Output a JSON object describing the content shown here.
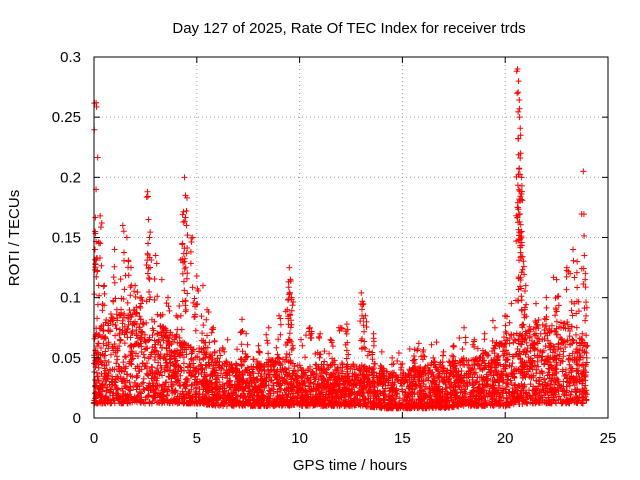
{
  "chart_data": {
    "type": "scatter",
    "title": "Day 127 of 2025, Rate Of TEC Index for receiver trds",
    "xlabel": "GPS time / hours",
    "ylabel": "ROTI / TECUs",
    "xlim": [
      0,
      25
    ],
    "ylim": [
      0,
      0.3
    ],
    "x_ticks": [
      0,
      5,
      10,
      15,
      20,
      25
    ],
    "x_tick_labels": [
      "0",
      "5",
      "10",
      "15",
      "20",
      "25"
    ],
    "y_ticks": [
      0,
      0.05,
      0.1,
      0.15,
      0.2,
      0.25,
      0.3
    ],
    "y_tick_labels": [
      "0",
      "0.05",
      "0.1",
      "0.15",
      "0.2",
      "0.25",
      "0.3"
    ],
    "grid": true,
    "marker": "+",
    "color": "#ff0000",
    "series": [
      {
        "name": "ROTI",
        "baseline_profile": {
          "description": "dense point cloud: typical ROTI level per hour (lower, upper envelope)",
          "hours": [
            0,
            1,
            2,
            3,
            4,
            5,
            6,
            7,
            8,
            9,
            10,
            11,
            12,
            13,
            14,
            15,
            16,
            17,
            18,
            19,
            20,
            21,
            22,
            23,
            24
          ],
          "low": [
            0.012,
            0.012,
            0.012,
            0.012,
            0.012,
            0.012,
            0.01,
            0.01,
            0.01,
            0.01,
            0.01,
            0.01,
            0.01,
            0.01,
            0.008,
            0.008,
            0.008,
            0.008,
            0.01,
            0.01,
            0.01,
            0.012,
            0.012,
            0.012,
            0.012
          ],
          "high": [
            0.07,
            0.09,
            0.09,
            0.08,
            0.07,
            0.06,
            0.05,
            0.045,
            0.045,
            0.05,
            0.045,
            0.045,
            0.045,
            0.045,
            0.04,
            0.04,
            0.045,
            0.045,
            0.05,
            0.055,
            0.065,
            0.075,
            0.08,
            0.08,
            0.07
          ]
        },
        "peaks": [
          {
            "x": 0.1,
            "y": 0.262
          },
          {
            "x": 0.1,
            "y": 0.19
          },
          {
            "x": 0.3,
            "y": 0.168
          },
          {
            "x": 0.05,
            "y": 0.14
          },
          {
            "x": 0.15,
            "y": 0.133
          },
          {
            "x": 0.5,
            "y": 0.11
          },
          {
            "x": 1.0,
            "y": 0.14
          },
          {
            "x": 1.4,
            "y": 0.16
          },
          {
            "x": 1.6,
            "y": 0.15
          },
          {
            "x": 1.8,
            "y": 0.125
          },
          {
            "x": 2.0,
            "y": 0.11
          },
          {
            "x": 2.3,
            "y": 0.1
          },
          {
            "x": 2.6,
            "y": 0.188
          },
          {
            "x": 2.65,
            "y": 0.165
          },
          {
            "x": 2.7,
            "y": 0.15
          },
          {
            "x": 3.0,
            "y": 0.135
          },
          {
            "x": 3.3,
            "y": 0.115
          },
          {
            "x": 3.6,
            "y": 0.1
          },
          {
            "x": 4.0,
            "y": 0.085
          },
          {
            "x": 4.4,
            "y": 0.2
          },
          {
            "x": 4.45,
            "y": 0.185
          },
          {
            "x": 4.5,
            "y": 0.172
          },
          {
            "x": 4.5,
            "y": 0.16
          },
          {
            "x": 4.3,
            "y": 0.145
          },
          {
            "x": 4.4,
            "y": 0.13
          },
          {
            "x": 4.8,
            "y": 0.15
          },
          {
            "x": 5.0,
            "y": 0.118
          },
          {
            "x": 5.3,
            "y": 0.11
          },
          {
            "x": 5.5,
            "y": 0.09
          },
          {
            "x": 5.8,
            "y": 0.075
          },
          {
            "x": 6.5,
            "y": 0.065
          },
          {
            "x": 7.2,
            "y": 0.082
          },
          {
            "x": 7.4,
            "y": 0.07
          },
          {
            "x": 8.0,
            "y": 0.06
          },
          {
            "x": 8.5,
            "y": 0.075
          },
          {
            "x": 9.0,
            "y": 0.085
          },
          {
            "x": 9.5,
            "y": 0.125
          },
          {
            "x": 9.55,
            "y": 0.115
          },
          {
            "x": 9.6,
            "y": 0.1
          },
          {
            "x": 9.4,
            "y": 0.09
          },
          {
            "x": 10.5,
            "y": 0.075
          },
          {
            "x": 11.0,
            "y": 0.07
          },
          {
            "x": 11.5,
            "y": 0.065
          },
          {
            "x": 12.0,
            "y": 0.075
          },
          {
            "x": 12.3,
            "y": 0.078
          },
          {
            "x": 13.0,
            "y": 0.104
          },
          {
            "x": 13.05,
            "y": 0.097
          },
          {
            "x": 13.2,
            "y": 0.085
          },
          {
            "x": 13.6,
            "y": 0.07
          },
          {
            "x": 14.0,
            "y": 0.055
          },
          {
            "x": 14.5,
            "y": 0.05
          },
          {
            "x": 15.0,
            "y": 0.045
          },
          {
            "x": 15.6,
            "y": 0.057
          },
          {
            "x": 15.8,
            "y": 0.062
          },
          {
            "x": 16.0,
            "y": 0.055
          },
          {
            "x": 16.5,
            "y": 0.05
          },
          {
            "x": 17.0,
            "y": 0.055
          },
          {
            "x": 17.5,
            "y": 0.06
          },
          {
            "x": 18.0,
            "y": 0.075
          },
          {
            "x": 18.5,
            "y": 0.065
          },
          {
            "x": 19.0,
            "y": 0.07
          },
          {
            "x": 19.5,
            "y": 0.075
          },
          {
            "x": 20.0,
            "y": 0.085
          },
          {
            "x": 20.3,
            "y": 0.095
          },
          {
            "x": 20.6,
            "y": 0.29
          },
          {
            "x": 20.65,
            "y": 0.28
          },
          {
            "x": 20.7,
            "y": 0.257
          },
          {
            "x": 20.7,
            "y": 0.25
          },
          {
            "x": 20.75,
            "y": 0.235
          },
          {
            "x": 20.75,
            "y": 0.22
          },
          {
            "x": 20.8,
            "y": 0.2
          },
          {
            "x": 20.6,
            "y": 0.175
          },
          {
            "x": 20.7,
            "y": 0.163
          },
          {
            "x": 20.8,
            "y": 0.155
          },
          {
            "x": 20.85,
            "y": 0.134
          },
          {
            "x": 21.0,
            "y": 0.11
          },
          {
            "x": 21.5,
            "y": 0.095
          },
          {
            "x": 22.0,
            "y": 0.1
          },
          {
            "x": 22.5,
            "y": 0.115
          },
          {
            "x": 23.0,
            "y": 0.125
          },
          {
            "x": 23.3,
            "y": 0.14
          },
          {
            "x": 23.5,
            "y": 0.13
          },
          {
            "x": 23.8,
            "y": 0.205
          },
          {
            "x": 23.85,
            "y": 0.135
          },
          {
            "x": 23.9,
            "y": 0.12
          }
        ]
      }
    ]
  }
}
